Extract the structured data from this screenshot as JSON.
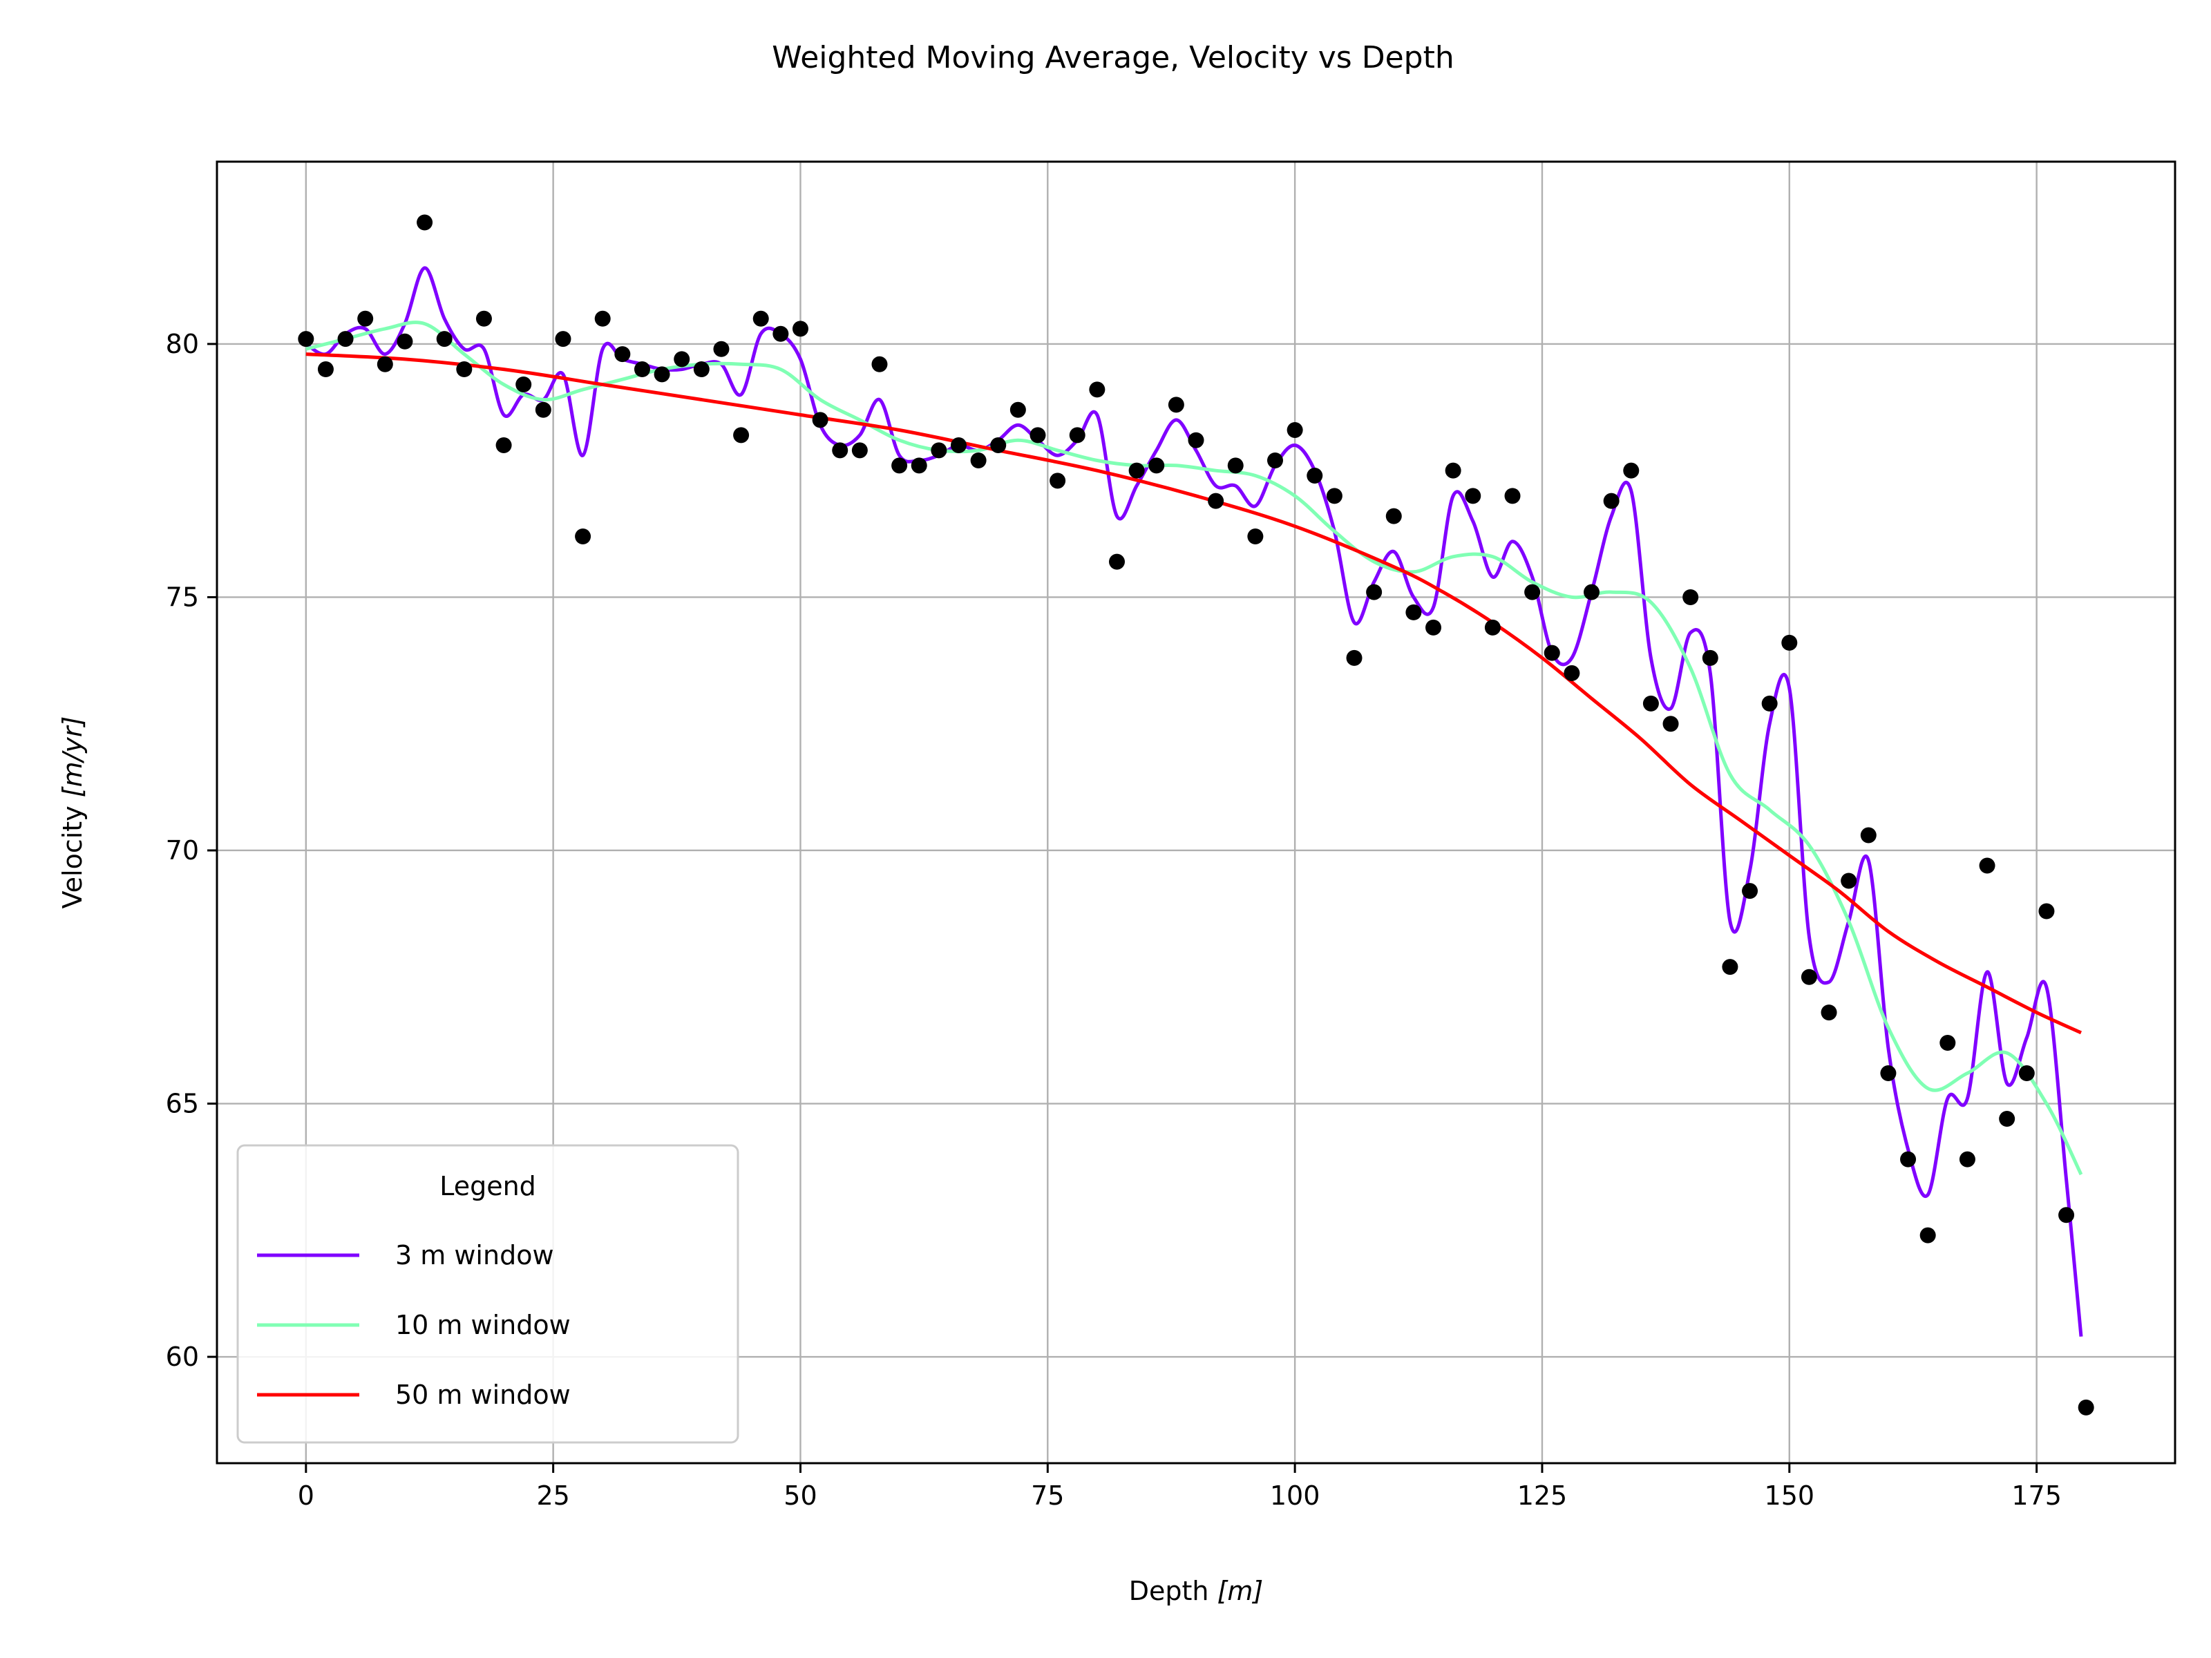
{
  "chart_data": {
    "type": "line",
    "title": "Weighted Moving Average, Velocity vs Depth",
    "xlabel_main": "Depth ",
    "xlabel_unit": "[m]",
    "ylabel_main": "Velocity ",
    "ylabel_unit": "[m/yr]",
    "xlim": [
      -9,
      189
    ],
    "ylim": [
      57.9,
      83.6
    ],
    "xticks": [
      0,
      25,
      50,
      75,
      100,
      125,
      150,
      175
    ],
    "yticks": [
      60,
      65,
      70,
      75,
      80
    ],
    "grid": true,
    "legend": {
      "title": "Legend",
      "position": "lower-left",
      "entries": [
        "3 m window",
        "10 m window",
        "50 m window"
      ]
    },
    "scatter": {
      "color": "#000000",
      "x": [
        0,
        2,
        4,
        6,
        8,
        10,
        12,
        14,
        16,
        18,
        20,
        22,
        24,
        26,
        28,
        30,
        32,
        34,
        36,
        38,
        40,
        42,
        44,
        46,
        48,
        50,
        52,
        54,
        56,
        58,
        60,
        62,
        64,
        66,
        68,
        70,
        72,
        74,
        76,
        78,
        80,
        82,
        84,
        86,
        88,
        90,
        92,
        94,
        96,
        98,
        100,
        102,
        104,
        106,
        108,
        110,
        112,
        114,
        116,
        118,
        120,
        122,
        124,
        126,
        128,
        130,
        132,
        134,
        136,
        138,
        140,
        142,
        144,
        146,
        148,
        150,
        152,
        154,
        156,
        158,
        160,
        162,
        164,
        166,
        168,
        170,
        172,
        174,
        176,
        178,
        180
      ],
      "y": [
        80.1,
        79.5,
        80.1,
        80.5,
        79.6,
        80.05,
        82.4,
        80.1,
        79.5,
        80.5,
        78.0,
        79.2,
        78.7,
        80.1,
        76.2,
        80.5,
        79.8,
        79.5,
        79.4,
        79.7,
        79.5,
        79.9,
        78.2,
        80.5,
        80.2,
        80.3,
        78.5,
        77.9,
        77.9,
        79.6,
        77.6,
        77.6,
        77.9,
        78.0,
        77.7,
        78.0,
        78.7,
        78.2,
        77.3,
        78.2,
        79.1,
        75.7,
        77.5,
        77.6,
        78.8,
        78.1,
        76.9,
        77.6,
        76.2,
        77.7,
        78.3,
        77.4,
        77.0,
        73.8,
        75.1,
        76.6,
        74.7,
        74.4,
        77.5,
        77.0,
        74.4,
        77.0,
        75.1,
        73.9,
        73.5,
        75.1,
        76.9,
        77.5,
        72.9,
        72.5,
        75.0,
        73.8,
        67.7,
        69.2,
        72.9,
        74.1,
        67.5,
        66.8,
        69.4,
        70.3,
        65.6,
        63.9,
        62.4,
        66.2,
        63.9,
        69.7,
        64.7,
        65.6,
        68.8,
        62.8,
        59.0
      ]
    },
    "series": [
      {
        "name": "3 m window",
        "color": "#8000ff",
        "x": [
          0,
          2,
          4,
          6,
          8,
          10,
          12,
          14,
          16,
          18,
          20,
          22,
          24,
          26,
          28,
          30,
          32,
          34,
          36,
          38,
          40,
          42,
          44,
          46,
          48,
          50,
          52,
          54,
          56,
          58,
          60,
          62,
          64,
          66,
          68,
          70,
          72,
          74,
          76,
          78,
          80,
          82,
          84,
          86,
          88,
          90,
          92,
          94,
          96,
          98,
          100,
          102,
          104,
          106,
          108,
          110,
          112,
          114,
          116,
          118,
          120,
          122,
          124,
          126,
          128,
          130,
          132,
          134,
          136,
          138,
          140,
          142,
          144,
          146,
          148,
          150,
          152,
          154,
          156,
          158,
          160,
          162,
          164,
          166,
          168,
          170,
          172,
          174,
          176,
          178,
          179.5
        ],
        "y": [
          80.0,
          79.8,
          80.2,
          80.3,
          79.8,
          80.4,
          81.5,
          80.5,
          79.9,
          79.9,
          78.6,
          79.0,
          78.9,
          79.4,
          77.8,
          79.9,
          79.7,
          79.6,
          79.5,
          79.5,
          79.6,
          79.6,
          79.0,
          80.2,
          80.2,
          79.7,
          78.4,
          78.0,
          78.2,
          78.9,
          77.8,
          77.7,
          77.8,
          78.0,
          77.9,
          78.1,
          78.4,
          78.1,
          77.8,
          78.1,
          78.6,
          76.6,
          77.2,
          77.9,
          78.5,
          77.9,
          77.2,
          77.2,
          76.8,
          77.6,
          78.0,
          77.5,
          76.3,
          74.5,
          75.3,
          75.9,
          75.0,
          74.8,
          77.0,
          76.5,
          75.4,
          76.1,
          75.4,
          73.9,
          73.8,
          75.1,
          76.6,
          77.1,
          73.8,
          72.8,
          74.3,
          73.5,
          68.6,
          69.6,
          72.5,
          73.2,
          68.3,
          67.4,
          68.6,
          69.8,
          66.1,
          64.1,
          63.2,
          65.1,
          65.1,
          67.6,
          65.4,
          66.3,
          67.3,
          63.5,
          60.4
        ]
      },
      {
        "name": "10 m window",
        "color": "#80ffb4",
        "x": [
          0,
          4,
          8,
          12,
          16,
          20,
          24,
          28,
          32,
          36,
          40,
          44,
          48,
          52,
          56,
          60,
          64,
          68,
          72,
          76,
          80,
          84,
          88,
          92,
          96,
          100,
          104,
          108,
          112,
          116,
          120,
          124,
          128,
          132,
          136,
          140,
          144,
          148,
          152,
          156,
          160,
          164,
          168,
          172,
          176,
          179.5
        ],
        "y": [
          79.9,
          80.1,
          80.3,
          80.4,
          79.8,
          79.2,
          78.9,
          79.1,
          79.3,
          79.5,
          79.6,
          79.6,
          79.5,
          78.9,
          78.5,
          78.1,
          77.9,
          77.9,
          78.1,
          77.9,
          77.7,
          77.6,
          77.6,
          77.5,
          77.4,
          77.0,
          76.3,
          75.7,
          75.5,
          75.8,
          75.8,
          75.3,
          75.0,
          75.1,
          74.9,
          73.6,
          71.5,
          70.8,
          70.1,
          68.6,
          66.5,
          65.3,
          65.6,
          66.0,
          65.0,
          63.6
        ]
      },
      {
        "name": "50 m window",
        "color": "#ff0000",
        "x": [
          0,
          10,
          20,
          30,
          40,
          50,
          60,
          70,
          80,
          90,
          100,
          110,
          115,
          120,
          125,
          130,
          135,
          140,
          145,
          150,
          155,
          160,
          165,
          170,
          175,
          179.5
        ],
        "y": [
          79.8,
          79.7,
          79.5,
          79.2,
          78.9,
          78.6,
          78.3,
          77.9,
          77.5,
          77.0,
          76.4,
          75.6,
          75.1,
          74.5,
          73.8,
          73.0,
          72.2,
          71.3,
          70.6,
          69.9,
          69.2,
          68.4,
          67.8,
          67.3,
          66.8,
          66.4
        ]
      }
    ]
  }
}
